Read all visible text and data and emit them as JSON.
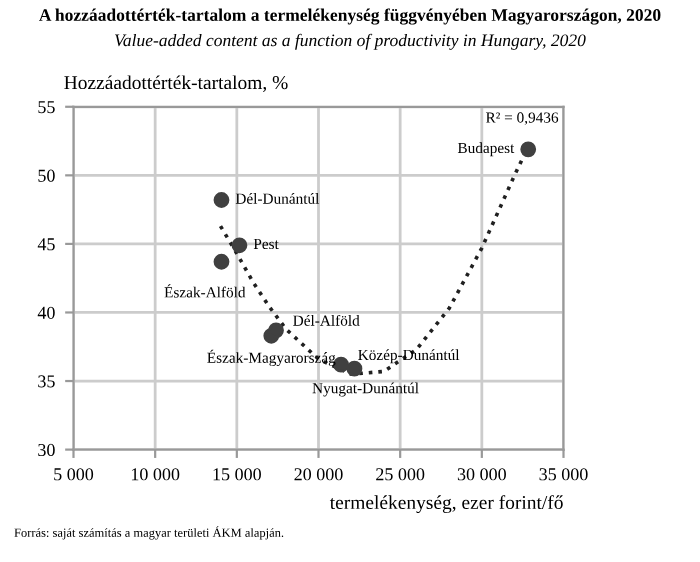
{
  "chart_data": {
    "type": "scatter",
    "title": "A hozzáadottérték-tartalom a termelékenység függvényében Magyarországon, 2020",
    "subtitle": "Value-added content as a function of productivity in Hungary, 2020",
    "ylabel": "Hozzáadottérték-tartalom, %",
    "xlabel": "termelékenység, ezer forint/fő",
    "xlim": [
      5000,
      35000
    ],
    "xticks": [
      {
        "value": 5000,
        "label": "5 000"
      },
      {
        "value": 10000,
        "label": "10 000"
      },
      {
        "value": 15000,
        "label": "15 000"
      },
      {
        "value": 20000,
        "label": "20 000"
      },
      {
        "value": 25000,
        "label": "25 000"
      },
      {
        "value": 30000,
        "label": "30 000"
      },
      {
        "value": 35000,
        "label": "35 000"
      }
    ],
    "ylim": [
      30,
      55
    ],
    "yticks": [
      30,
      35,
      40,
      45,
      50,
      55
    ],
    "grid": true,
    "marker": "circle",
    "series": [
      {
        "color": "#404040",
        "x": [
          14060,
          15160,
          14060,
          17110,
          17400,
          21380,
          22200,
          32840
        ],
        "values": [
          48.2,
          44.9,
          43.7,
          38.3,
          38.7,
          36.2,
          35.9,
          51.9
        ]
      },
      {
        "type": "line",
        "color": "#202020",
        "line_style": "dotted",
        "marker": "none",
        "x": [
          14000,
          15000,
          16000,
          17000,
          18000,
          20000,
          22000,
          24000,
          26000,
          28000,
          30000,
          32000,
          32800
        ],
        "values": [
          46.3,
          44.3,
          42.2,
          40.4,
          38.8,
          36.6,
          35.5,
          35.7,
          37.3,
          40.3,
          44.7,
          50.0,
          52.0
        ]
      }
    ],
    "annotations": [
      {
        "text": "Dél-Dunántúl",
        "x": 14060,
        "y": 48.2
      },
      {
        "text": "Pest",
        "x": 15160,
        "y": 44.9
      },
      {
        "text": "Észak-Alföld",
        "x": 14060,
        "y": 43.7
      },
      {
        "text": "Észak-Magyarország",
        "x": 17110,
        "y": 38.3
      },
      {
        "text": "Dél-Alföld",
        "x": 17400,
        "y": 38.7
      },
      {
        "text": "Közép-Dunántúl",
        "x": 21380,
        "y": 36.2
      },
      {
        "text": "Nyugat-Dunántúl",
        "x": 22200,
        "y": 35.9
      },
      {
        "text": "Budapest",
        "x": 32840,
        "y": 51.9
      },
      "R² = 0,9436",
      "Forrás: saját számítás a magyar területi ÁKM alapján."
    ]
  }
}
